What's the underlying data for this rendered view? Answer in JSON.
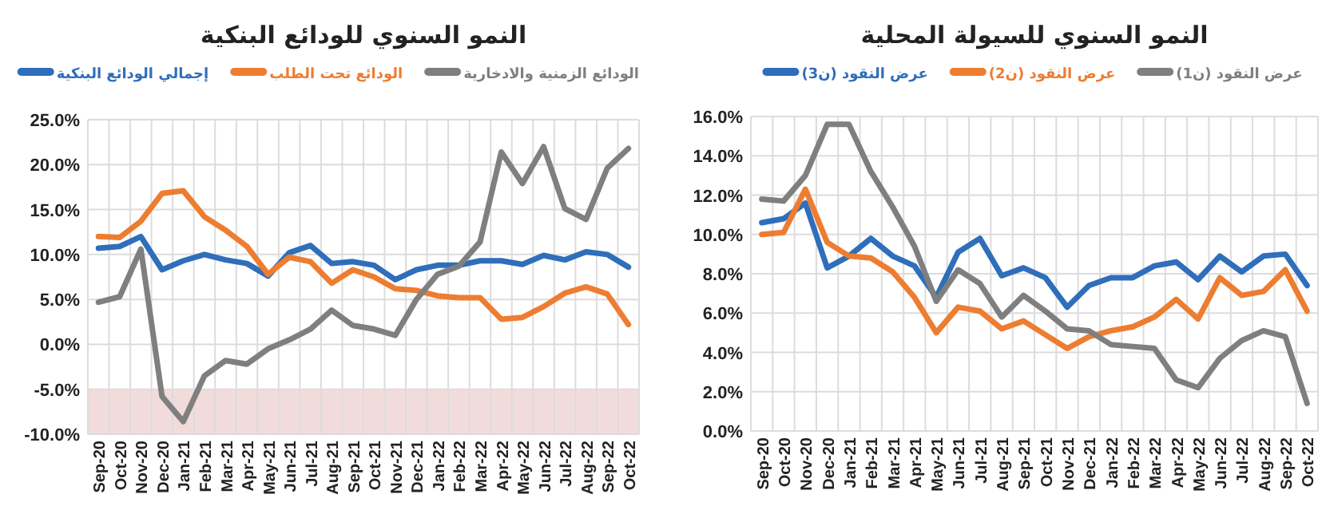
{
  "chart_data": [
    {
      "type": "line",
      "title": "النمو السنوي للودائع البنكية",
      "categories": [
        "Sep-20",
        "Oct-20",
        "Nov-20",
        "Dec-20",
        "Jan-21",
        "Feb-21",
        "Mar-21",
        "Apr-21",
        "May-21",
        "Jun-21",
        "Jul-21",
        "Aug-21",
        "Sep-21",
        "Oct-21",
        "Nov-21",
        "Dec-21",
        "Jan-22",
        "Feb-22",
        "Mar-22",
        "Apr-22",
        "May-22",
        "Jun-22",
        "Jul-22",
        "Aug-22",
        "Sep-22",
        "Oct-22"
      ],
      "series": [
        {
          "name": "إجمالي الودائع البنكية",
          "color": "#2f6eba",
          "values": [
            10.7,
            10.9,
            12.0,
            8.3,
            9.3,
            10.0,
            9.4,
            9.0,
            7.6,
            10.2,
            11.0,
            9.0,
            9.2,
            8.8,
            7.2,
            8.3,
            8.8,
            8.8,
            9.3,
            9.3,
            8.9,
            9.9,
            9.4,
            10.3,
            10.0,
            8.6
          ]
        },
        {
          "name": "الودائع تحت الطلب",
          "color": "#ed7d31",
          "values": [
            12.0,
            11.9,
            13.7,
            16.8,
            17.1,
            14.2,
            12.7,
            10.9,
            7.8,
            9.7,
            9.2,
            6.8,
            8.3,
            7.5,
            6.2,
            6.0,
            5.4,
            5.2,
            5.2,
            2.8,
            3.0,
            4.2,
            5.7,
            6.4,
            5.6,
            2.2
          ]
        },
        {
          "name": "الودائع الزمنية والادخارية",
          "color": "#7f7f7f",
          "values": [
            4.7,
            5.3,
            10.6,
            -5.8,
            -8.6,
            -3.5,
            -1.8,
            -2.2,
            -0.5,
            0.5,
            1.7,
            3.8,
            2.1,
            1.7,
            1.0,
            5.0,
            7.8,
            8.7,
            11.4,
            21.4,
            17.9,
            22.0,
            15.1,
            13.9,
            19.6,
            21.8
          ]
        }
      ],
      "ylim": [
        -10,
        25
      ],
      "yticks": [
        {
          "value": -10,
          "label": "-10.0%"
        },
        {
          "value": -5,
          "label": "-5.0%"
        },
        {
          "value": 0,
          "label": "0.0%"
        },
        {
          "value": 5,
          "label": "5.0%"
        },
        {
          "value": 10,
          "label": "10.0%"
        },
        {
          "value": 15,
          "label": "15.0%"
        },
        {
          "value": 20,
          "label": "20.0%"
        },
        {
          "value": 25,
          "label": "25.0%"
        }
      ],
      "bands": [
        {
          "axis": "y",
          "from": -10,
          "to": -5,
          "color": "#f2dcdb"
        }
      ],
      "grid": true,
      "legend": "top"
    },
    {
      "type": "line",
      "title": "النمو السنوي للسيولة المحلية",
      "categories": [
        "Sep-20",
        "Oct-20",
        "Nov-20",
        "Dec-20",
        "Jan-21",
        "Feb-21",
        "Mar-21",
        "Apr-21",
        "May-21",
        "Jun-21",
        "Jul-21",
        "Aug-21",
        "Sep-21",
        "Oct-21",
        "Nov-21",
        "Dec-21",
        "Jan-22",
        "Feb-22",
        "Mar-22",
        "Apr-22",
        "May-22",
        "Jun-22",
        "Jul-22",
        "Aug-22",
        "Sep-22",
        "Oct-22"
      ],
      "series": [
        {
          "name": "عرض النقود (ن3)",
          "color": "#2f6eba",
          "values": [
            10.6,
            10.8,
            11.6,
            8.3,
            8.9,
            9.8,
            8.9,
            8.4,
            6.8,
            9.1,
            9.8,
            7.9,
            8.3,
            7.8,
            6.3,
            7.4,
            7.8,
            7.8,
            8.4,
            8.6,
            7.7,
            8.9,
            8.1,
            8.9,
            9.0,
            7.4
          ]
        },
        {
          "name": "عرض النقود (ن2)",
          "color": "#ed7d31",
          "values": [
            10.0,
            10.1,
            12.3,
            9.6,
            8.9,
            8.8,
            8.1,
            6.8,
            5.0,
            6.3,
            6.1,
            5.2,
            5.6,
            4.9,
            4.2,
            4.8,
            5.1,
            5.3,
            5.8,
            6.7,
            5.7,
            7.8,
            6.9,
            7.1,
            8.2,
            6.1
          ]
        },
        {
          "name": "عرض النقود (ن1)",
          "color": "#7f7f7f",
          "values": [
            11.8,
            11.7,
            13.0,
            15.6,
            15.6,
            13.2,
            11.4,
            9.4,
            6.6,
            8.2,
            7.5,
            5.8,
            6.9,
            6.1,
            5.2,
            5.1,
            4.4,
            4.3,
            4.2,
            2.6,
            2.2,
            3.7,
            4.6,
            5.1,
            4.8,
            1.4
          ]
        }
      ],
      "ylim": [
        0,
        16
      ],
      "yticks": [
        {
          "value": 0,
          "label": "0.0%"
        },
        {
          "value": 2,
          "label": "2.0%"
        },
        {
          "value": 4,
          "label": "4.0%"
        },
        {
          "value": 6,
          "label": "6.0%"
        },
        {
          "value": 8,
          "label": "8.0%"
        },
        {
          "value": 10,
          "label": "10.0%"
        },
        {
          "value": 12,
          "label": "12.0%"
        },
        {
          "value": 14,
          "label": "14.0%"
        },
        {
          "value": 16,
          "label": "16.0%"
        }
      ],
      "grid": true,
      "legend": "top"
    }
  ]
}
